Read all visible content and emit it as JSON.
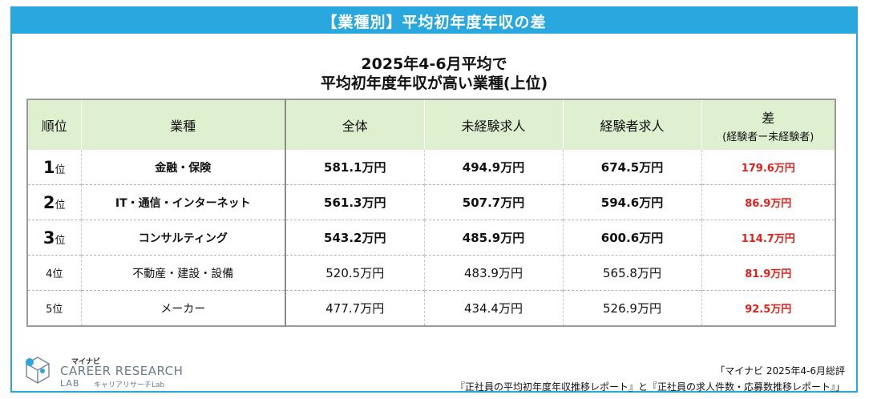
{
  "header": {
    "title": "【業種別】平均初年度年収の差"
  },
  "chart": {
    "title_line1": "2025年4-6月平均で",
    "title_line2": "平均初年度年収が高い業種(上位)"
  },
  "table": {
    "headers": {
      "rank": "順位",
      "industry": "業種",
      "overall": "全体",
      "inexperienced": "未経験求人",
      "experienced": "経験者求人",
      "diff": "差",
      "diff_sub": "(経験者ー未経験者)"
    },
    "rows": [
      {
        "rank_num": "1",
        "rank_suffix": "位",
        "industry": "金融・保険",
        "overall": "581.1万円",
        "inexperienced": "494.9万円",
        "experienced": "674.5万円",
        "diff": "179.6万円"
      },
      {
        "rank_num": "2",
        "rank_suffix": "位",
        "industry": "IT・通信・インターネット",
        "overall": "561.3万円",
        "inexperienced": "507.7万円",
        "experienced": "594.6万円",
        "diff": "86.9万円"
      },
      {
        "rank_num": "3",
        "rank_suffix": "位",
        "industry": "コンサルティング",
        "overall": "543.2万円",
        "inexperienced": "485.9万円",
        "experienced": "600.6万円",
        "diff": "114.7万円"
      },
      {
        "rank_num": "4",
        "rank_suffix": "位",
        "industry": "不動産・建設・設備",
        "overall": "520.5万円",
        "inexperienced": "483.9万円",
        "experienced": "565.8万円",
        "diff": "81.9万円"
      },
      {
        "rank_num": "5",
        "rank_suffix": "位",
        "industry": "メーカー",
        "overall": "477.7万円",
        "inexperienced": "434.4万円",
        "experienced": "526.9万円",
        "diff": "92.5万円"
      }
    ]
  },
  "logo": {
    "small": "マイナビ",
    "main": "CAREER RESEARCH",
    "sub": "LAB",
    "jp": "キャリアリサーチLab"
  },
  "source": {
    "line1": "「マイナビ 2025年4-6月総評",
    "line2": "『正社員の平均初年度年収推移レポート』と『正社員の求人件数・応募数推移レポート』」"
  },
  "colors": {
    "header_band": "#29a8df",
    "table_header_bg": "#dff0d0",
    "diff_text": "#e0211b",
    "logo_gray": "#6b7c8c"
  }
}
